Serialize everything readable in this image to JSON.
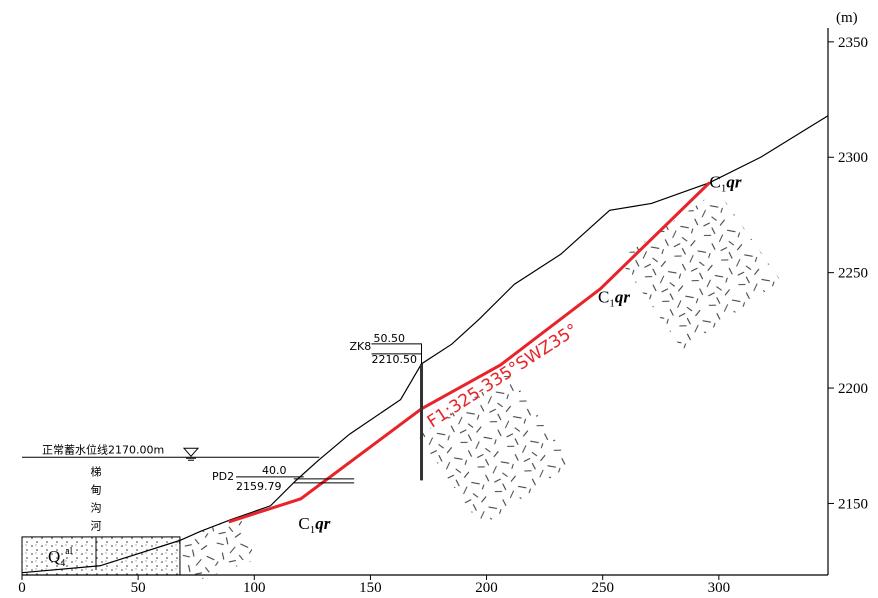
{
  "chart_data": {
    "type": "profile",
    "unit": "(m)",
    "xlim": [
      0,
      347
    ],
    "ylim": [
      2119,
      2356
    ],
    "xticks": [
      0,
      50,
      100,
      150,
      200,
      250,
      300
    ],
    "yticks": [
      2150,
      2200,
      2250,
      2300,
      2350
    ],
    "series": [
      {
        "color": "#000000",
        "x": [
          0,
          33.6,
          68,
          77,
          90,
          107,
          118,
          128,
          141,
          163,
          172,
          185,
          197,
          212,
          232,
          253,
          271,
          296,
          318,
          347
        ],
        "values": [
          2120,
          2123,
          2134,
          2138,
          2143,
          2149,
          2160,
          2169,
          2180,
          2195,
          2210.5,
          2219,
          2230,
          2245,
          2258,
          2277,
          2280,
          2289,
          2300,
          2318
        ]
      },
      {
        "color": "#e8232a",
        "x": [
          89,
          120,
          172,
          206,
          249,
          296
        ],
        "values": [
          2142,
          2152,
          2191,
          2210,
          2243,
          2289
        ]
      }
    ],
    "fault_label": "F1:325-335°SWZ35°",
    "water_level": {
      "label": "正常蓄水位线2170.00m",
      "value": 2170,
      "x_end": 128
    },
    "river": [
      "梯",
      "甸",
      "沟",
      "河"
    ],
    "borehole": {
      "name": "ZK8",
      "x": 172,
      "elevation": {
        "value": 2210.5,
        "label": "2210.50"
      },
      "depth": {
        "value": 50.5,
        "label": "50.50"
      }
    },
    "adit": {
      "name": "PD2",
      "x": [
        117,
        143
      ],
      "elevation": {
        "value": 2159.79,
        "label": "2159.79"
      },
      "length": "40.0"
    },
    "strata": [
      {
        "symbol": "C",
        "sub": "1",
        "suffix": "qr",
        "x": 296,
        "y": 2287
      },
      {
        "symbol": "C",
        "sub": "1",
        "suffix": "qr",
        "x": 248,
        "y": 2237
      },
      {
        "symbol": "C",
        "sub": "1",
        "suffix": "qr",
        "x": 119,
        "y": 2139
      }
    ],
    "alluvium": {
      "symbol": "Q",
      "sub": "4",
      "sup": "al",
      "top": 2135.5
    }
  }
}
